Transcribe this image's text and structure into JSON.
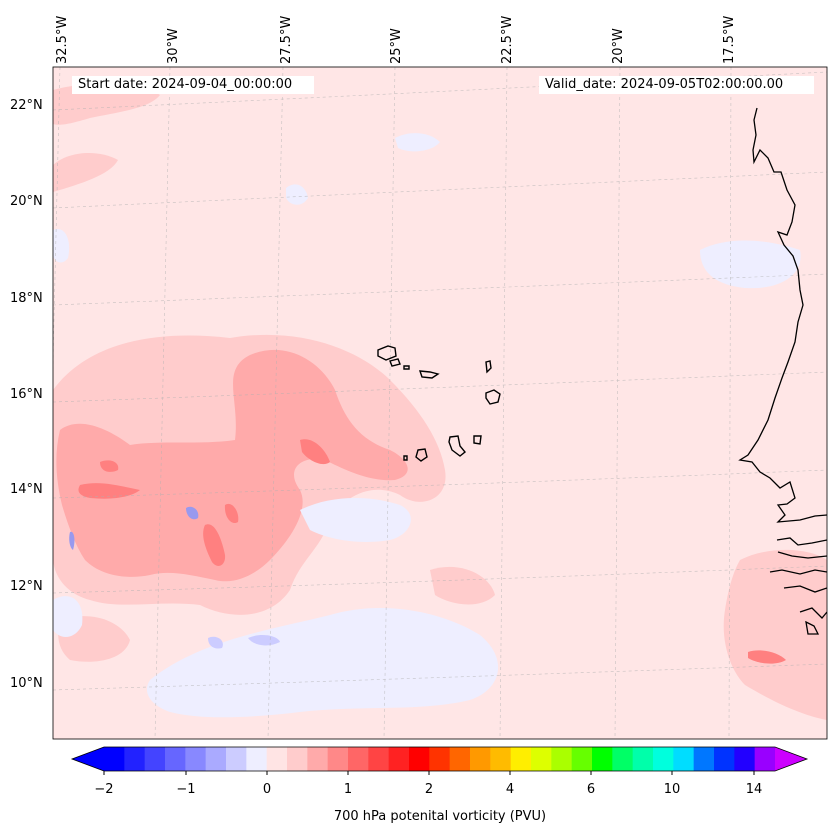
{
  "map": {
    "start_date_text": "Start date: 2024-09-04_00:00:00",
    "valid_date_text": "Valid_date: 2024-09-05T02:00:00.00",
    "longitude_labels": [
      "32.5°W",
      "30°W",
      "27.5°W",
      "25°W",
      "22.5°W",
      "20°W",
      "17.5°W"
    ],
    "latitude_labels": [
      "22°N",
      "20°N",
      "18°N",
      "16°N",
      "14°N",
      "12°N",
      "10°N"
    ],
    "features": [
      "West African coastline",
      "Cape Verde islands"
    ],
    "field_colors": {
      "background": "#ffe6e6",
      "light_pink": "#ffcccc",
      "medium_pink": "#ffaaaa",
      "strong_pink": "#ff8080",
      "pale_blue": "#eeeeff",
      "light_blue": "#ccccff",
      "blue": "#9999ee"
    }
  },
  "colorbar": {
    "title": "700 hPa potenital vorticity (PVU)",
    "tick_labels": [
      "−2",
      "−1",
      "0",
      "1",
      "2",
      "4",
      "6",
      "10",
      "14"
    ],
    "colors": [
      "#0000ff",
      "#2222ff",
      "#4444ff",
      "#6666ff",
      "#8888ff",
      "#aaaaff",
      "#ccccff",
      "#eeeeff",
      "#ffe4e4",
      "#ffcccc",
      "#ffaaaa",
      "#ff8888",
      "#ff6666",
      "#ff4444",
      "#ff2222",
      "#ff0000",
      "#ff3300",
      "#ff6600",
      "#ff9900",
      "#ffbb00",
      "#ffee00",
      "#ddff00",
      "#aaff00",
      "#66ff00",
      "#00ff00",
      "#00ff66",
      "#00ffaa",
      "#00ffdd",
      "#00ddff",
      "#0077ff",
      "#0033ff",
      "#2200ff",
      "#9900ff"
    ],
    "extend_min_color": "#0000ff",
    "extend_max_color": "#cc00ff"
  }
}
